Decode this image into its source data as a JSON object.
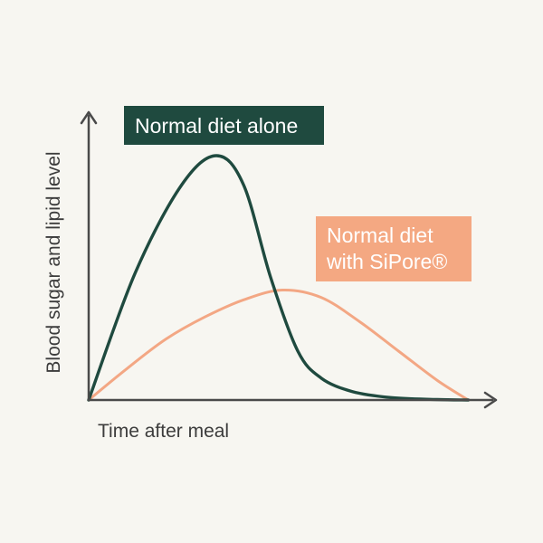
{
  "chart_data": {
    "type": "line",
    "title": "",
    "xlabel": "Time after meal",
    "ylabel": "Blood sugar and lipid level",
    "grid": false,
    "axis_ticks": false,
    "xlim": [
      0,
      10
    ],
    "ylim": [
      0,
      10
    ],
    "legend_position": "inline-labels",
    "series": [
      {
        "name": "Normal diet alone",
        "label_lines": [
          "Normal diet alone"
        ],
        "color": "#1f4a3f",
        "label_bg": "#1f4a3f",
        "label_text_color": "#ffffff",
        "x": [
          0,
          1.2,
          2.4,
          3.3,
          4.0,
          4.7,
          5.4,
          6.0,
          6.8,
          7.8,
          9.0,
          9.8
        ],
        "y": [
          0,
          5.2,
          8.8,
          10.0,
          8.8,
          5.0,
          2.0,
          0.9,
          0.35,
          0.1,
          0.02,
          0
        ]
      },
      {
        "name": "Normal diet with SiPore®",
        "label_lines": [
          "Normal diet",
          "with SiPore®"
        ],
        "color": "#f3a784",
        "label_bg": "#f4a882",
        "label_text_color": "#ffffff",
        "x": [
          0,
          1.0,
          2.0,
          3.0,
          4.0,
          5.0,
          6.0,
          7.0,
          8.0,
          9.0,
          9.8
        ],
        "y": [
          0,
          1.3,
          2.5,
          3.4,
          4.1,
          4.5,
          4.2,
          3.2,
          2.0,
          0.8,
          0
        ]
      }
    ]
  }
}
